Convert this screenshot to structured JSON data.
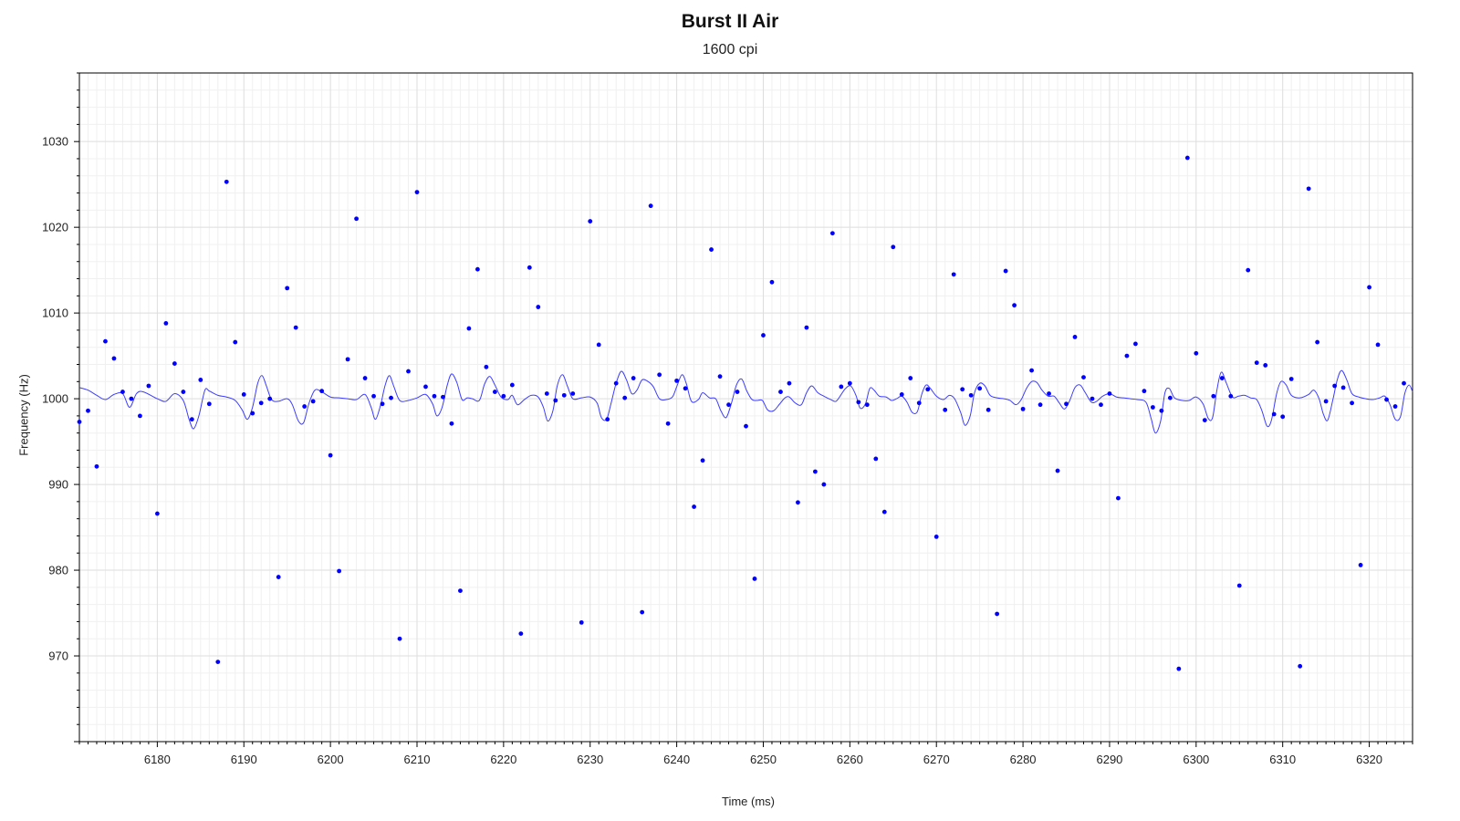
{
  "chart_data": {
    "type": "scatter",
    "title": "Burst II Air",
    "subtitle": "1600 cpi",
    "xlabel": "Time (ms)",
    "ylabel": "Frequency (Hz)",
    "xlim": [
      6171,
      6325
    ],
    "ylim": [
      960,
      1038
    ],
    "x_ticks": [
      6180,
      6190,
      6200,
      6210,
      6220,
      6230,
      6240,
      6250,
      6260,
      6270,
      6280,
      6290,
      6300,
      6310,
      6320
    ],
    "y_ticks": [
      970,
      980,
      990,
      1000,
      1010,
      1020,
      1030
    ],
    "grid": true,
    "legend": "none",
    "series_color": "#0000ff",
    "line_color": "#3d3dff",
    "points": [
      [
        6171,
        997.3
      ],
      [
        6172,
        998.6
      ],
      [
        6173,
        992.1
      ],
      [
        6174,
        1006.7
      ],
      [
        6175,
        1004.7
      ],
      [
        6176,
        1000.8
      ],
      [
        6177,
        1000.0
      ],
      [
        6178,
        998.0
      ],
      [
        6179,
        1001.5
      ],
      [
        6180,
        986.6
      ],
      [
        6181,
        1008.8
      ],
      [
        6182,
        1004.1
      ],
      [
        6183,
        1000.8
      ],
      [
        6184,
        997.6
      ],
      [
        6185,
        1002.2
      ],
      [
        6186,
        999.4
      ],
      [
        6187,
        969.3
      ],
      [
        6188,
        1025.3
      ],
      [
        6189,
        1006.6
      ],
      [
        6190,
        1000.5
      ],
      [
        6191,
        998.3
      ],
      [
        6192,
        999.5
      ],
      [
        6193,
        1000.0
      ],
      [
        6194,
        979.2
      ],
      [
        6195,
        1012.9
      ],
      [
        6196,
        1008.3
      ],
      [
        6197,
        999.1
      ],
      [
        6198,
        999.7
      ],
      [
        6199,
        1000.9
      ],
      [
        6200,
        993.4
      ],
      [
        6201,
        979.9
      ],
      [
        6202,
        1004.6
      ],
      [
        6203,
        1021.0
      ],
      [
        6204,
        1002.4
      ],
      [
        6205,
        1000.3
      ],
      [
        6206,
        999.4
      ],
      [
        6207,
        1000.1
      ],
      [
        6208,
        972.0
      ],
      [
        6209,
        1003.2
      ],
      [
        6210,
        1024.1
      ],
      [
        6211,
        1001.4
      ],
      [
        6212,
        1000.3
      ],
      [
        6213,
        1000.2
      ],
      [
        6214,
        997.1
      ],
      [
        6215,
        977.6
      ],
      [
        6216,
        1008.2
      ],
      [
        6217,
        1015.1
      ],
      [
        6218,
        1003.7
      ],
      [
        6219,
        1000.8
      ],
      [
        6220,
        1000.3
      ],
      [
        6221,
        1001.6
      ],
      [
        6222,
        972.6
      ],
      [
        6223,
        1015.3
      ],
      [
        6224,
        1010.7
      ],
      [
        6225,
        1000.6
      ],
      [
        6226,
        999.8
      ],
      [
        6227,
        1000.4
      ],
      [
        6228,
        1000.6
      ],
      [
        6229,
        973.9
      ],
      [
        6230,
        1020.7
      ],
      [
        6231,
        1006.3
      ],
      [
        6232,
        997.6
      ],
      [
        6233,
        1001.8
      ],
      [
        6234,
        1000.1
      ],
      [
        6235,
        1002.4
      ],
      [
        6236,
        975.1
      ],
      [
        6237,
        1022.5
      ],
      [
        6238,
        1002.8
      ],
      [
        6239,
        997.1
      ],
      [
        6240,
        1002.1
      ],
      [
        6241,
        1001.2
      ],
      [
        6242,
        987.4
      ],
      [
        6243,
        992.8
      ],
      [
        6244,
        1017.4
      ],
      [
        6245,
        1002.6
      ],
      [
        6246,
        999.3
      ],
      [
        6247,
        1000.8
      ],
      [
        6248,
        996.8
      ],
      [
        6249,
        979.0
      ],
      [
        6250,
        1007.4
      ],
      [
        6251,
        1013.6
      ],
      [
        6252,
        1000.8
      ],
      [
        6253,
        1001.8
      ],
      [
        6254,
        987.9
      ],
      [
        6255,
        1008.3
      ],
      [
        6256,
        991.5
      ],
      [
        6257,
        990.0
      ],
      [
        6258,
        1019.3
      ],
      [
        6259,
        1001.4
      ],
      [
        6260,
        1001.8
      ],
      [
        6261,
        999.6
      ],
      [
        6262,
        999.3
      ],
      [
        6263,
        993.0
      ],
      [
        6264,
        986.8
      ],
      [
        6265,
        1017.7
      ],
      [
        6266,
        1000.5
      ],
      [
        6267,
        1002.4
      ],
      [
        6268,
        999.5
      ],
      [
        6269,
        1001.1
      ],
      [
        6270,
        983.9
      ],
      [
        6271,
        998.7
      ],
      [
        6272,
        1014.5
      ],
      [
        6273,
        1001.1
      ],
      [
        6274,
        1000.4
      ],
      [
        6275,
        1001.2
      ],
      [
        6276,
        998.7
      ],
      [
        6277,
        974.9
      ],
      [
        6278,
        1014.9
      ],
      [
        6279,
        1010.9
      ],
      [
        6280,
        998.8
      ],
      [
        6281,
        1003.3
      ],
      [
        6282,
        999.3
      ],
      [
        6283,
        1000.6
      ],
      [
        6284,
        991.6
      ],
      [
        6285,
        999.4
      ],
      [
        6286,
        1007.2
      ],
      [
        6287,
        1002.5
      ],
      [
        6288,
        1000.0
      ],
      [
        6289,
        999.3
      ],
      [
        6290,
        1000.6
      ],
      [
        6291,
        988.4
      ],
      [
        6292,
        1005.0
      ],
      [
        6293,
        1006.4
      ],
      [
        6294,
        1000.9
      ],
      [
        6295,
        999.0
      ],
      [
        6296,
        998.6
      ],
      [
        6297,
        1000.1
      ],
      [
        6298,
        968.5
      ],
      [
        6299,
        1028.1
      ],
      [
        6300,
        1005.3
      ],
      [
        6301,
        997.5
      ],
      [
        6302,
        1000.3
      ],
      [
        6303,
        1002.4
      ],
      [
        6304,
        1000.3
      ],
      [
        6305,
        978.2
      ],
      [
        6306,
        1015.0
      ],
      [
        6307,
        1004.2
      ],
      [
        6308,
        1003.9
      ],
      [
        6309,
        998.2
      ],
      [
        6310,
        997.9
      ],
      [
        6311,
        1002.3
      ],
      [
        6312,
        968.8
      ],
      [
        6313,
        1024.5
      ],
      [
        6314,
        1006.6
      ],
      [
        6315,
        999.7
      ],
      [
        6316,
        1001.5
      ],
      [
        6317,
        1001.3
      ],
      [
        6318,
        999.5
      ],
      [
        6319,
        980.6
      ],
      [
        6320,
        1013.0
      ],
      [
        6321,
        1006.3
      ],
      [
        6322,
        999.9
      ],
      [
        6323,
        999.1
      ],
      [
        6324,
        1001.8
      ]
    ],
    "line": [
      [
        6171,
        1001.3
      ],
      [
        6172,
        1001.0
      ],
      [
        6173,
        1000.4
      ],
      [
        6174,
        999.9
      ],
      [
        6175,
        1000.5
      ],
      [
        6176,
        1000.6
      ],
      [
        6176.8,
        999.0
      ],
      [
        6177.6,
        1000.6
      ],
      [
        6178.4,
        1000.8
      ],
      [
        6180,
        1000.0
      ],
      [
        6181,
        999.7
      ],
      [
        6182,
        1000.6
      ],
      [
        6183,
        999.8
      ],
      [
        6183.7,
        997.5
      ],
      [
        6184.2,
        996.5
      ],
      [
        6184.8,
        998.0
      ],
      [
        6185.5,
        1001.0
      ],
      [
        6186,
        1000.9
      ],
      [
        6187,
        1000.4
      ],
      [
        6188,
        1000.2
      ],
      [
        6189,
        999.8
      ],
      [
        6189.8,
        998.7
      ],
      [
        6190.4,
        997.6
      ],
      [
        6191,
        999.0
      ],
      [
        6191.6,
        1001.8
      ],
      [
        6192.1,
        1002.7
      ],
      [
        6192.6,
        1001.5
      ],
      [
        6193.2,
        999.9
      ],
      [
        6194,
        999.7
      ],
      [
        6195,
        1000.0
      ],
      [
        6195.6,
        999.3
      ],
      [
        6196.3,
        997.4
      ],
      [
        6196.9,
        997.2
      ],
      [
        6197.5,
        999.4
      ],
      [
        6198.2,
        1001.0
      ],
      [
        6199,
        1000.8
      ],
      [
        6200,
        1000.2
      ],
      [
        6201,
        1000.1
      ],
      [
        6202,
        1000.0
      ],
      [
        6203,
        999.9
      ],
      [
        6204,
        1000.5
      ],
      [
        6204.7,
        999.0
      ],
      [
        6205.2,
        997.6
      ],
      [
        6205.8,
        999.3
      ],
      [
        6206.3,
        1001.5
      ],
      [
        6206.8,
        1002.7
      ],
      [
        6207.3,
        1001.5
      ],
      [
        6208,
        999.8
      ],
      [
        6209,
        999.8
      ],
      [
        6210,
        1000.1
      ],
      [
        6211,
        1000.5
      ],
      [
        6211.8,
        999.4
      ],
      [
        6212.3,
        998.0
      ],
      [
        6212.9,
        999.0
      ],
      [
        6213.5,
        1001.6
      ],
      [
        6214,
        1002.9
      ],
      [
        6214.6,
        1001.9
      ],
      [
        6215.2,
        999.9
      ],
      [
        6215.8,
        1000.1
      ],
      [
        6216.4,
        1000.0
      ],
      [
        6217.2,
        999.8
      ],
      [
        6217.8,
        1001.7
      ],
      [
        6218.4,
        1002.6
      ],
      [
        6219,
        1001.6
      ],
      [
        6219.7,
        1000.2
      ],
      [
        6220.5,
        999.9
      ],
      [
        6221,
        1000.4
      ],
      [
        6221.6,
        999.3
      ],
      [
        6222.4,
        999.9
      ],
      [
        6223.2,
        1000.4
      ],
      [
        6224,
        1000.2
      ],
      [
        6224.6,
        999.0
      ],
      [
        6225.1,
        997.4
      ],
      [
        6225.7,
        998.6
      ],
      [
        6226.2,
        1001.5
      ],
      [
        6226.8,
        1002.8
      ],
      [
        6227.4,
        1001.4
      ],
      [
        6228,
        1000.0
      ],
      [
        6229,
        1000.1
      ],
      [
        6230,
        1000.2
      ],
      [
        6230.8,
        999.5
      ],
      [
        6231.3,
        997.8
      ],
      [
        6231.9,
        997.6
      ],
      [
        6232.4,
        999.4
      ],
      [
        6233,
        1001.8
      ],
      [
        6233.6,
        1003.2
      ],
      [
        6234.2,
        1002.2
      ],
      [
        6234.8,
        1000.6
      ],
      [
        6235.4,
        1001.0
      ],
      [
        6236,
        1002.2
      ],
      [
        6236.7,
        1002.0
      ],
      [
        6237.3,
        1001.4
      ],
      [
        6238,
        1000.0
      ],
      [
        6238.8,
        999.9
      ],
      [
        6239.5,
        1000.2
      ],
      [
        6240,
        1001.4
      ],
      [
        6240.6,
        1002.8
      ],
      [
        6241.1,
        1001.8
      ],
      [
        6241.7,
        999.7
      ],
      [
        6242.5,
        999.9
      ],
      [
        6243,
        1000.7
      ],
      [
        6243.8,
        1000.1
      ],
      [
        6244.5,
        1000.0
      ],
      [
        6245.1,
        998.6
      ],
      [
        6245.7,
        997.8
      ],
      [
        6246.3,
        999.4
      ],
      [
        6246.9,
        1001.6
      ],
      [
        6247.5,
        1002.3
      ],
      [
        6248.1,
        1000.9
      ],
      [
        6248.7,
        999.9
      ],
      [
        6249.3,
        999.8
      ],
      [
        6249.9,
        999.8
      ],
      [
        6250.5,
        998.7
      ],
      [
        6251.2,
        998.6
      ],
      [
        6251.9,
        999.4
      ],
      [
        6252.5,
        1000.1
      ],
      [
        6253,
        1000.2
      ],
      [
        6253.7,
        999.5
      ],
      [
        6254.4,
        999.3
      ],
      [
        6255,
        1000.7
      ],
      [
        6255.6,
        1001.5
      ],
      [
        6256.3,
        1000.7
      ],
      [
        6257,
        1000.3
      ],
      [
        6257.8,
        999.9
      ],
      [
        6258.4,
        999.7
      ],
      [
        6259,
        1000.5
      ],
      [
        6259.5,
        1001.2
      ],
      [
        6260.1,
        1001.5
      ],
      [
        6260.7,
        1000.4
      ],
      [
        6261.2,
        998.9
      ],
      [
        6261.8,
        999.4
      ],
      [
        6262.3,
        1001.2
      ],
      [
        6262.8,
        1001.0
      ],
      [
        6263.4,
        1000.3
      ],
      [
        6264.2,
        1000.2
      ],
      [
        6264.8,
        999.8
      ],
      [
        6265.4,
        1000.0
      ],
      [
        6266,
        1000.3
      ],
      [
        6266.6,
        999.6
      ],
      [
        6267.2,
        998.4
      ],
      [
        6267.8,
        998.5
      ],
      [
        6268.3,
        1000.5
      ],
      [
        6268.8,
        1001.6
      ],
      [
        6269.3,
        1001.2
      ],
      [
        6270,
        1000.3
      ],
      [
        6270.8,
        999.9
      ],
      [
        6271.5,
        1000.4
      ],
      [
        6272.1,
        1000.0
      ],
      [
        6272.8,
        998.4
      ],
      [
        6273.3,
        996.9
      ],
      [
        6273.9,
        998.0
      ],
      [
        6274.4,
        1000.7
      ],
      [
        6275,
        1001.8
      ],
      [
        6275.6,
        1001.5
      ],
      [
        6276.2,
        1000.4
      ],
      [
        6277,
        1000.1
      ],
      [
        6277.8,
        1000.0
      ],
      [
        6278.5,
        999.8
      ],
      [
        6279.2,
        999.3
      ],
      [
        6279.8,
        999.9
      ],
      [
        6280.4,
        1001.2
      ],
      [
        6281,
        1002.0
      ],
      [
        6281.6,
        1001.9
      ],
      [
        6282.2,
        1001.0
      ],
      [
        6282.9,
        1000.3
      ],
      [
        6283.6,
        1000.3
      ],
      [
        6284.2,
        999.5
      ],
      [
        6284.8,
        998.8
      ],
      [
        6285.4,
        999.8
      ],
      [
        6286,
        1001.3
      ],
      [
        6286.6,
        1001.6
      ],
      [
        6287.2,
        1000.7
      ],
      [
        6287.9,
        999.6
      ],
      [
        6288.5,
        999.7
      ],
      [
        6289.2,
        1000.3
      ],
      [
        6290,
        1000.6
      ],
      [
        6290.8,
        1000.2
      ],
      [
        6291.6,
        1000.1
      ],
      [
        6292.4,
        1000.0
      ],
      [
        6293.2,
        999.9
      ],
      [
        6294.2,
        999.6
      ],
      [
        6294.8,
        997.7
      ],
      [
        6295.3,
        996.0
      ],
      [
        6295.9,
        997.4
      ],
      [
        6296.4,
        1000.7
      ],
      [
        6296.9,
        1001.2
      ],
      [
        6297.5,
        1000.1
      ],
      [
        6298.4,
        999.8
      ],
      [
        6299.2,
        999.8
      ],
      [
        6300,
        1000.2
      ],
      [
        6300.8,
        999.4
      ],
      [
        6301.4,
        997.7
      ],
      [
        6301.9,
        997.8
      ],
      [
        6302.4,
        1001.0
      ],
      [
        6302.9,
        1003.1
      ],
      [
        6303.5,
        1001.8
      ],
      [
        6304.2,
        1000.2
      ],
      [
        6304.9,
        1000.3
      ],
      [
        6305.6,
        1000.4
      ],
      [
        6306.3,
        1000.1
      ],
      [
        6307,
        999.9
      ],
      [
        6307.6,
        998.6
      ],
      [
        6308.2,
        996.8
      ],
      [
        6308.7,
        997.5
      ],
      [
        6309.3,
        1000.6
      ],
      [
        6309.8,
        1002.0
      ],
      [
        6310.4,
        1001.6
      ],
      [
        6311,
        1000.4
      ],
      [
        6312,
        1000.1
      ],
      [
        6313,
        1000.5
      ],
      [
        6313.6,
        1001.0
      ],
      [
        6314.2,
        1000.0
      ],
      [
        6314.7,
        998.2
      ],
      [
        6315.2,
        997.5
      ],
      [
        6315.8,
        999.9
      ],
      [
        6316.3,
        1002.2
      ],
      [
        6316.8,
        1003.3
      ],
      [
        6317.4,
        1002.2
      ],
      [
        6318,
        1000.6
      ],
      [
        6318.8,
        1000.2
      ],
      [
        6319.6,
        1000.0
      ],
      [
        6320.4,
        999.9
      ],
      [
        6321.2,
        1000.1
      ],
      [
        6321.8,
        1000.3
      ],
      [
        6322.4,
        999.3
      ],
      [
        6323,
        997.6
      ],
      [
        6323.6,
        997.9
      ],
      [
        6324.1,
        1000.6
      ],
      [
        6324.6,
        1001.6
      ],
      [
        6325,
        1000.8
      ]
    ]
  }
}
